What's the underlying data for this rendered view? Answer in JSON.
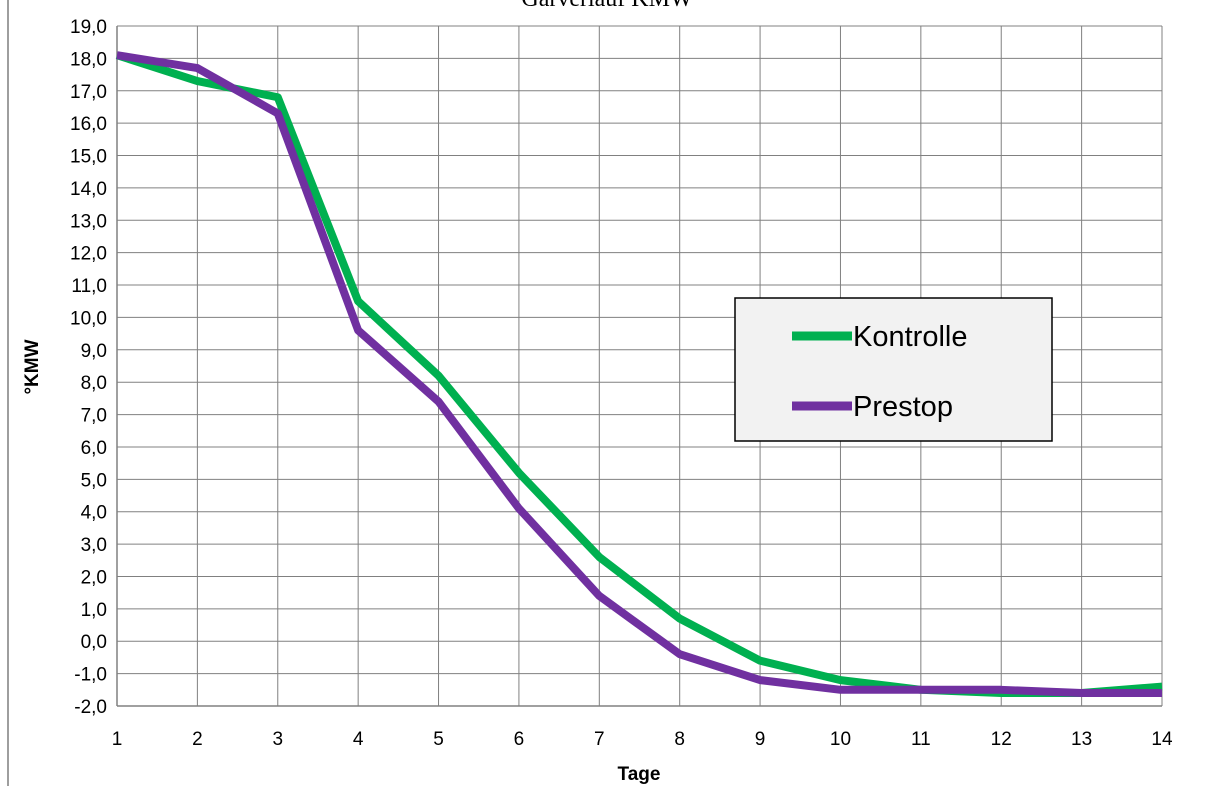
{
  "chart_data": {
    "type": "line",
    "title": "Garverlauf KMW",
    "xlabel": "Tage",
    "ylabel": "°KMW",
    "x": [
      1,
      2,
      3,
      4,
      5,
      6,
      7,
      8,
      9,
      10,
      11,
      12,
      13,
      14
    ],
    "xlim": [
      1,
      14
    ],
    "ylim": [
      -2,
      19
    ],
    "ytick_step": 1,
    "ytick_format": "decimal-comma-1",
    "grid": true,
    "legend_position": "right",
    "series": [
      {
        "name": "Kontrolle",
        "color": "#00b050",
        "values": [
          18.1,
          17.3,
          16.8,
          10.5,
          8.2,
          5.2,
          2.6,
          0.7,
          -0.6,
          -1.2,
          -1.5,
          -1.6,
          -1.6,
          -1.4
        ]
      },
      {
        "name": "Prestop",
        "color": "#7030a0",
        "values": [
          18.1,
          17.7,
          16.3,
          9.6,
          7.4,
          4.1,
          1.4,
          -0.4,
          -1.2,
          -1.5,
          -1.5,
          -1.5,
          -1.6,
          -1.6
        ]
      }
    ]
  }
}
